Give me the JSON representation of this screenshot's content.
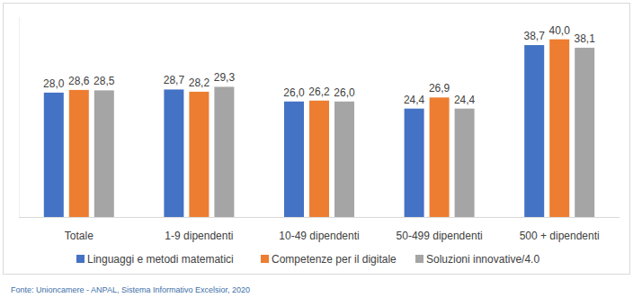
{
  "chart_data": {
    "type": "bar",
    "categories": [
      "Totale",
      "1-9 dipendenti",
      "10-49 dipendenti",
      "50-499 dipendenti",
      "500 + dipendenti"
    ],
    "series": [
      {
        "name": "Linguaggi e metodi matematici",
        "color": "#4472c4",
        "values": [
          28.0,
          28.7,
          26.0,
          24.4,
          38.7
        ],
        "value_labels": [
          "28,0",
          "28,7",
          "26,0",
          "24,4",
          "38,7"
        ]
      },
      {
        "name": "Competenze per il digitale",
        "color": "#ed7d31",
        "values": [
          28.6,
          28.2,
          26.2,
          26.9,
          40.0
        ],
        "value_labels": [
          "28,6",
          "28,2",
          "26,2",
          "26,9",
          "40,0"
        ]
      },
      {
        "name": "Soluzioni innovative/4.0",
        "color": "#a5a5a5",
        "values": [
          28.5,
          29.3,
          26.0,
          24.4,
          38.1
        ],
        "value_labels": [
          "28,5",
          "29,3",
          "26,0",
          "24,4",
          "38,1"
        ]
      }
    ],
    "ylim": [
      0,
      45
    ],
    "grid": false,
    "legend": "bottom",
    "data_labels": true,
    "tick_labels": "x",
    "annotations": [
      "Fonte: Unioncamere - ANPAL, Sistema Informativo Excelsior, 2020"
    ]
  }
}
